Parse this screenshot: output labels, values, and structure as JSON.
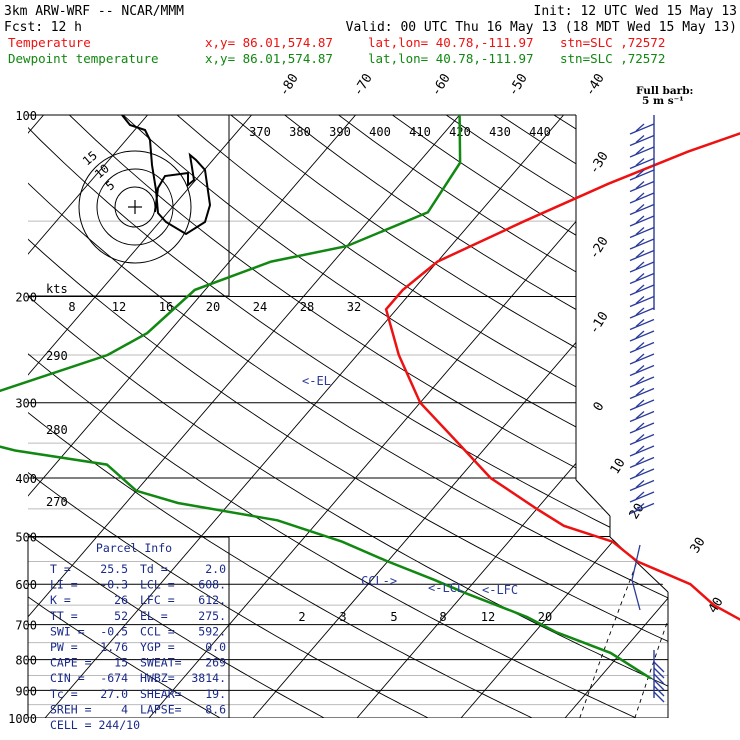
{
  "header": {
    "model": "3km ARW-WRF -- NCAR/MMM",
    "init": "Init: 12 UTC Wed 15 May 13",
    "fcst_label": "Fcst:",
    "fcst_value": "12 h",
    "valid": "Valid: 00 UTC Thu 16 May 13 (18 MDT Wed 15 May 13)",
    "temp_line": {
      "label": "Temperature",
      "xy": "x,y= 86.01,574.87",
      "latlon": "lat,lon= 40.78,-111.97",
      "stn": "stn=SLC ,72572"
    },
    "dew_line": {
      "label": "Dewpoint temperature",
      "xy": "x,y= 86.01,574.87",
      "latlon": "lat,lon= 40.78,-111.97",
      "stn": "stn=SLC ,72572"
    }
  },
  "colors": {
    "temperature": "#ee1111",
    "dewpoint": "#118811",
    "barbs": "#2a3a9a",
    "annot": "#2a3a9a"
  },
  "chart_data": {
    "type": "line",
    "title": "",
    "xlabel": "",
    "ylabel": "",
    "ylim": [
      1000,
      100
    ],
    "pressure_labels": [
      "100",
      "200",
      "300",
      "400",
      "500",
      "600",
      "700",
      "800",
      "900",
      "1000"
    ],
    "skewed_temperature_labels": [
      "-80",
      "-70",
      "-60",
      "-50",
      "-40",
      "-30",
      "-20",
      "-10",
      "0",
      "10",
      "20",
      "30",
      "40"
    ],
    "theta_labels": [
      "370",
      "380",
      "390",
      "400",
      "410",
      "420",
      "430",
      "440"
    ],
    "theta_left_labels": [
      "290",
      "280",
      "270"
    ],
    "wind_speed_axis": {
      "unit": "kts",
      "ticks": [
        "8",
        "12",
        "16",
        "20",
        "24",
        "28",
        "32"
      ]
    },
    "mixing_ratio_labels": [
      "2",
      "3",
      "5",
      "8",
      "12",
      "20"
    ],
    "full_barb": "Full barb:",
    "full_barb_value": "5 m s⁻¹",
    "series": [
      {
        "name": "Temperature",
        "points": [
          [
            100,
            -38
          ],
          [
            115,
            -45
          ],
          [
            130,
            -50
          ],
          [
            150,
            -55
          ],
          [
            175,
            -60
          ],
          [
            195,
            -61
          ],
          [
            210,
            -61
          ],
          [
            250,
            -56
          ],
          [
            300,
            -50
          ],
          [
            350,
            -43
          ],
          [
            400,
            -37
          ],
          [
            450,
            -30
          ],
          [
            480,
            -26
          ],
          [
            510,
            -20
          ],
          [
            550,
            -16
          ],
          [
            600,
            -9
          ],
          [
            650,
            -5
          ],
          [
            700,
            0
          ],
          [
            750,
            3
          ],
          [
            800,
            7
          ],
          [
            850,
            11
          ],
          [
            875,
            12
          ]
        ]
      },
      {
        "name": "Dewpoint temperature",
        "points": [
          [
            100,
            -70
          ],
          [
            120,
            -66
          ],
          [
            145,
            -65
          ],
          [
            165,
            -70
          ],
          [
            175,
            -76
          ],
          [
            195,
            -81
          ],
          [
            230,
            -82
          ],
          [
            250,
            -84
          ],
          [
            290,
            -92
          ],
          [
            320,
            -92
          ],
          [
            340,
            -92
          ],
          [
            360,
            -85
          ],
          [
            380,
            -75
          ],
          [
            420,
            -70
          ],
          [
            440,
            -65
          ],
          [
            470,
            -54
          ],
          [
            510,
            -46
          ],
          [
            550,
            -40
          ],
          [
            590,
            -34
          ],
          [
            620,
            -30
          ],
          [
            680,
            -22
          ],
          [
            720,
            -18
          ],
          [
            780,
            -11
          ],
          [
            860,
            -5
          ]
        ]
      }
    ],
    "annotations": [
      "<-EL",
      "CCL->",
      "<-LCL",
      "<-LFC"
    ],
    "hodograph_rings": [
      "5",
      "10",
      "15"
    ],
    "parcel_info": {
      "title": "Parcel Info",
      "rows": [
        [
          "T  =",
          "25.5",
          "Td =",
          "2.0"
        ],
        [
          "LI =",
          "-0.3",
          "LCL =",
          "608."
        ],
        [
          "K  =",
          "26",
          "LFC =",
          "612."
        ],
        [
          "TT =",
          "52",
          "EL =",
          "275."
        ],
        [
          "SWI =",
          "-0.5",
          "CCL =",
          "592."
        ],
        [
          "PW =",
          "1.76",
          "YGP =",
          "0.0"
        ],
        [
          "CAPE =",
          "15",
          "SWEAT=",
          "269"
        ],
        [
          "CIN =",
          "-674",
          "HWBZ=",
          "3814."
        ],
        [
          "Tc =",
          "27.0",
          "SHEAR=",
          "19."
        ],
        [
          "SREH =",
          "4",
          "LAPSE=",
          "8.6"
        ]
      ],
      "cell": "CELL = 244/10"
    }
  }
}
